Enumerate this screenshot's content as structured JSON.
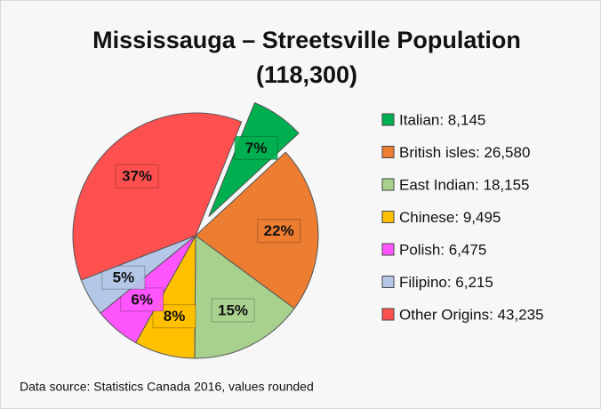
{
  "chart_data": {
    "type": "pie",
    "title": "Mississauga – Streetsville Population",
    "subtitle": "(118,300)",
    "categories": [
      "Italian: 8,145",
      "British isles: 26,580",
      "East Indian: 18,155",
      "Chinese: 9,495",
      "Polish: 6,475",
      "Filipino: 6,215",
      "Other Origins: 43,235"
    ],
    "values": [
      7,
      22,
      15,
      8,
      6,
      5,
      37
    ],
    "value_labels": [
      "7%",
      "22%",
      "15%",
      "8%",
      "6%",
      "5%",
      "37%"
    ],
    "colors": [
      "#00b050",
      "#ed7d31",
      "#a9d18e",
      "#ffc000",
      "#ff55ff",
      "#b4c7e7",
      "#ff5050"
    ],
    "explode": [
      true,
      false,
      false,
      false,
      false,
      false,
      false
    ],
    "legend": "right",
    "source": "Data source: Statistics Canada 2016, values rounded"
  }
}
